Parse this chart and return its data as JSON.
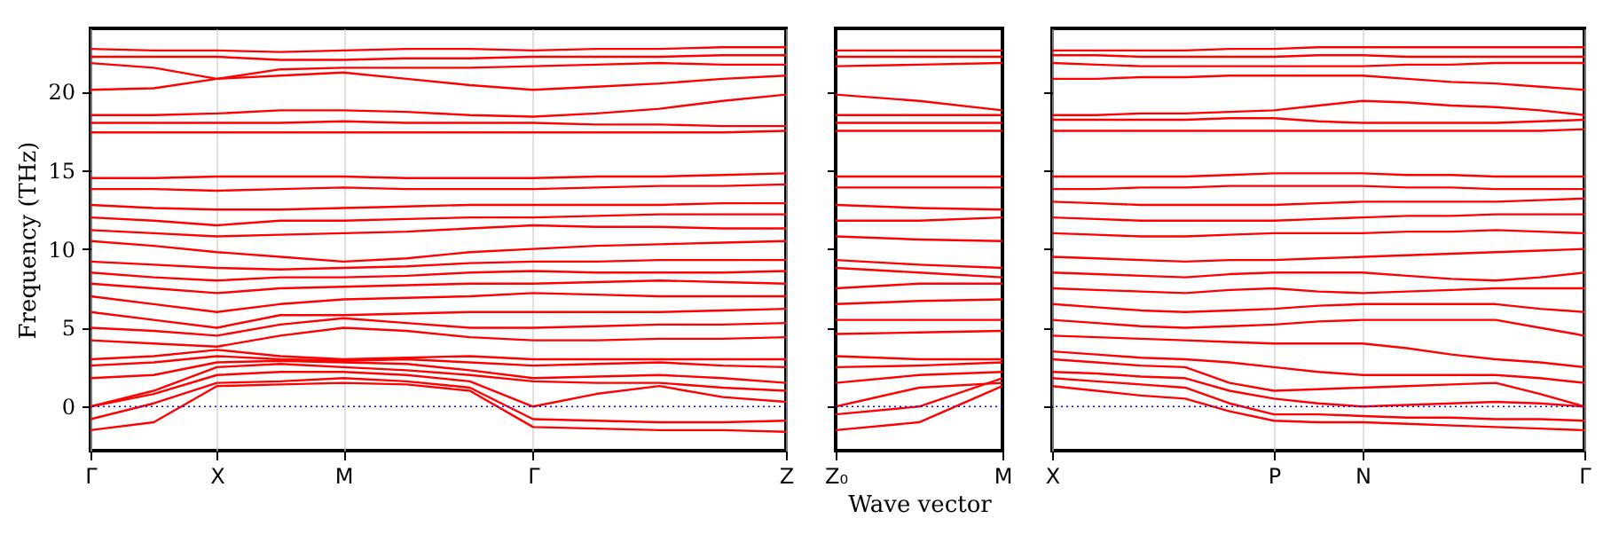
{
  "chart_data": [
    {
      "type": "line",
      "ylabel": "Frequency (THz)",
      "grid": "x",
      "ylim": [
        -2.8,
        24
      ],
      "categories": [
        "Γ",
        null,
        "X",
        null,
        "M",
        null,
        null,
        "Γ",
        null,
        null,
        null,
        "Z"
      ],
      "yticks": [
        0,
        5,
        10,
        15,
        20
      ],
      "ref_lines": [
        {
          "axis": "y",
          "value": 0,
          "color": "#0000ff",
          "line_style": "dotted"
        }
      ],
      "series": [
        {
          "color": "#ff0000",
          "values": [
            -1.5,
            -1.0,
            1.3,
            1.4,
            1.5,
            1.4,
            1.0,
            -1.3,
            -1.4,
            -1.5,
            -1.5,
            -1.6
          ]
        },
        {
          "color": "#ff0000",
          "values": [
            -0.8,
            0.2,
            1.5,
            1.6,
            1.8,
            1.6,
            1.2,
            -0.8,
            -0.9,
            -1.0,
            -1.0,
            -0.9
          ]
        },
        {
          "color": "#ff0000",
          "values": [
            0,
            0.8,
            2.0,
            2.2,
            2.2,
            2.0,
            1.6,
            0,
            0.8,
            1.3,
            0.6,
            0.3
          ]
        },
        {
          "color": "#ff0000",
          "values": [
            0,
            1.0,
            2.5,
            2.7,
            2.5,
            2.3,
            2.0,
            1.6,
            1.5,
            1.5,
            1.2,
            1.0
          ]
        },
        {
          "color": "#ff0000",
          "values": [
            1.8,
            2.0,
            2.8,
            2.9,
            2.8,
            2.7,
            2.3,
            1.8,
            1.9,
            2.0,
            1.8,
            1.5
          ]
        },
        {
          "color": "#ff0000",
          "values": [
            2.6,
            2.8,
            3.2,
            3.0,
            2.9,
            3.0,
            2.8,
            2.6,
            2.7,
            2.8,
            2.6,
            2.5
          ]
        },
        {
          "color": "#ff0000",
          "values": [
            3.0,
            3.2,
            3.6,
            3.2,
            3.0,
            3.1,
            3.2,
            3.0,
            3.0,
            3.0,
            3.0,
            3.0
          ]
        },
        {
          "color": "#ff0000",
          "values": [
            4.2,
            4.0,
            3.8,
            4.5,
            5.0,
            4.8,
            4.4,
            4.2,
            4.2,
            4.3,
            4.3,
            4.4
          ]
        },
        {
          "color": "#ff0000",
          "values": [
            5.0,
            4.8,
            4.5,
            5.2,
            5.6,
            5.3,
            5.0,
            5.0,
            5.1,
            5.2,
            5.2,
            5.3
          ]
        },
        {
          "color": "#ff0000",
          "values": [
            6.0,
            5.5,
            5.0,
            5.8,
            5.8,
            5.9,
            6.0,
            6.0,
            6.0,
            6.0,
            6.1,
            6.2
          ]
        },
        {
          "color": "#ff0000",
          "values": [
            7.0,
            6.5,
            6.0,
            6.5,
            6.8,
            6.9,
            7.0,
            7.2,
            7.1,
            7.0,
            7.0,
            7.0
          ]
        },
        {
          "color": "#ff0000",
          "values": [
            7.8,
            7.5,
            7.2,
            7.5,
            7.6,
            7.7,
            7.8,
            7.8,
            7.9,
            8.0,
            7.9,
            7.8
          ]
        },
        {
          "color": "#ff0000",
          "values": [
            8.5,
            8.2,
            8.0,
            8.2,
            8.2,
            8.3,
            8.5,
            8.6,
            8.5,
            8.5,
            8.5,
            8.6
          ]
        },
        {
          "color": "#ff0000",
          "values": [
            9.2,
            9.0,
            8.8,
            8.7,
            8.8,
            8.9,
            9.1,
            9.2,
            9.2,
            9.3,
            9.3,
            9.3
          ]
        },
        {
          "color": "#ff0000",
          "values": [
            10.5,
            10.2,
            9.8,
            9.5,
            9.2,
            9.4,
            9.8,
            10.0,
            10.2,
            10.3,
            10.4,
            10.5
          ]
        },
        {
          "color": "#ff0000",
          "values": [
            11.2,
            11.0,
            10.8,
            10.9,
            11.0,
            11.1,
            11.3,
            11.5,
            11.4,
            11.4,
            11.3,
            11.3
          ]
        },
        {
          "color": "#ff0000",
          "values": [
            12.0,
            11.8,
            11.5,
            11.8,
            11.8,
            11.9,
            12.0,
            12.0,
            12.1,
            12.2,
            12.2,
            12.2
          ]
        },
        {
          "color": "#ff0000",
          "values": [
            12.8,
            12.6,
            12.5,
            12.5,
            12.6,
            12.7,
            12.8,
            12.8,
            12.8,
            12.8,
            12.9,
            12.9
          ]
        },
        {
          "color": "#ff0000",
          "values": [
            13.8,
            13.8,
            13.7,
            13.8,
            13.9,
            13.8,
            13.8,
            13.8,
            13.9,
            14.0,
            14.0,
            14.1
          ]
        },
        {
          "color": "#ff0000",
          "values": [
            14.5,
            14.5,
            14.6,
            14.6,
            14.6,
            14.5,
            14.5,
            14.5,
            14.6,
            14.6,
            14.7,
            14.8
          ]
        },
        {
          "color": "#ff0000",
          "values": [
            17.4,
            17.4,
            17.4,
            17.4,
            17.4,
            17.4,
            17.4,
            17.4,
            17.4,
            17.4,
            17.4,
            17.5
          ]
        },
        {
          "color": "#ff0000",
          "values": [
            18.0,
            18.0,
            18.0,
            18.0,
            18.1,
            18.0,
            18.0,
            18.0,
            17.9,
            17.9,
            17.8,
            17.8
          ]
        },
        {
          "color": "#ff0000",
          "values": [
            18.5,
            18.5,
            18.6,
            18.8,
            18.8,
            18.7,
            18.5,
            18.4,
            18.6,
            18.9,
            19.4,
            19.8
          ]
        },
        {
          "color": "#ff0000",
          "values": [
            20.1,
            20.2,
            20.8,
            21.0,
            21.2,
            20.8,
            20.4,
            20.1,
            20.3,
            20.5,
            20.8,
            21.0
          ]
        },
        {
          "color": "#ff0000",
          "values": [
            21.8,
            21.5,
            20.8,
            21.4,
            21.5,
            21.5,
            21.5,
            21.6,
            21.7,
            21.8,
            21.7,
            21.7
          ]
        },
        {
          "color": "#ff0000",
          "values": [
            22.2,
            22.2,
            22.2,
            22.0,
            22.0,
            22.1,
            22.1,
            22.2,
            22.2,
            22.2,
            22.3,
            22.3
          ]
        },
        {
          "color": "#ff0000",
          "values": [
            22.7,
            22.6,
            22.6,
            22.5,
            22.6,
            22.7,
            22.7,
            22.6,
            22.7,
            22.7,
            22.8,
            22.8
          ]
        }
      ]
    },
    {
      "type": "line",
      "xlabel": "Wave vector",
      "tick_labels": "x",
      "ylim": [
        -2.8,
        24
      ],
      "categories": [
        "Z₀",
        null,
        "M"
      ],
      "yticks": [
        0,
        5,
        10,
        15,
        20
      ],
      "ref_lines": [
        {
          "axis": "y",
          "value": 0,
          "color": "#0000ff",
          "line_style": "dotted"
        }
      ],
      "series": [
        {
          "color": "#ff0000",
          "values": [
            -1.5,
            -1.0,
            1.3
          ]
        },
        {
          "color": "#ff0000",
          "values": [
            -0.5,
            0.0,
            1.8
          ]
        },
        {
          "color": "#ff0000",
          "values": [
            0,
            1.2,
            1.5
          ]
        },
        {
          "color": "#ff0000",
          "values": [
            1.5,
            2.0,
            2.2
          ]
        },
        {
          "color": "#ff0000",
          "values": [
            2.5,
            2.6,
            2.8
          ]
        },
        {
          "color": "#ff0000",
          "values": [
            3.2,
            3.0,
            3.0
          ]
        },
        {
          "color": "#ff0000",
          "values": [
            4.6,
            4.7,
            4.8
          ]
        },
        {
          "color": "#ff0000",
          "values": [
            5.5,
            5.5,
            5.5
          ]
        },
        {
          "color": "#ff0000",
          "values": [
            6.5,
            6.7,
            6.8
          ]
        },
        {
          "color": "#ff0000",
          "values": [
            7.5,
            7.8,
            7.8
          ]
        },
        {
          "color": "#ff0000",
          "values": [
            8.8,
            8.5,
            8.2
          ]
        },
        {
          "color": "#ff0000",
          "values": [
            9.3,
            9.0,
            8.8
          ]
        },
        {
          "color": "#ff0000",
          "values": [
            10.8,
            10.6,
            10.5
          ]
        },
        {
          "color": "#ff0000",
          "values": [
            11.8,
            11.8,
            12.0
          ]
        },
        {
          "color": "#ff0000",
          "values": [
            12.8,
            12.6,
            12.5
          ]
        },
        {
          "color": "#ff0000",
          "values": [
            13.9,
            13.9,
            13.9
          ]
        },
        {
          "color": "#ff0000",
          "values": [
            14.6,
            14.6,
            14.6
          ]
        },
        {
          "color": "#ff0000",
          "values": [
            17.5,
            17.5,
            17.5
          ]
        },
        {
          "color": "#ff0000",
          "values": [
            18.0,
            18.0,
            18.0
          ]
        },
        {
          "color": "#ff0000",
          "values": [
            18.5,
            18.5,
            18.5
          ]
        },
        {
          "color": "#ff0000",
          "values": [
            19.8,
            19.4,
            18.8
          ]
        },
        {
          "color": "#ff0000",
          "values": [
            21.6,
            21.7,
            21.8
          ]
        },
        {
          "color": "#ff0000",
          "values": [
            22.2,
            22.2,
            22.2
          ]
        },
        {
          "color": "#ff0000",
          "values": [
            22.6,
            22.6,
            22.6
          ]
        }
      ]
    },
    {
      "type": "line",
      "grid": "x",
      "tick_labels": "x",
      "ylim": [
        -2.8,
        24
      ],
      "categories": [
        "X",
        null,
        null,
        null,
        null,
        "P",
        null,
        "N",
        null,
        null,
        null,
        null,
        "Γ"
      ],
      "yticks": [
        0,
        5,
        10,
        15,
        20
      ],
      "ref_lines": [
        {
          "axis": "y",
          "value": 0,
          "color": "#0000ff",
          "line_style": "dotted"
        }
      ],
      "series": [
        {
          "color": "#ff0000",
          "values": [
            1.3,
            1.0,
            0.7,
            0.5,
            -0.3,
            -0.9,
            -1.0,
            -1.0,
            -1.1,
            -1.2,
            -1.3,
            -1.4,
            -1.5
          ]
        },
        {
          "color": "#ff0000",
          "values": [
            1.8,
            1.6,
            1.4,
            1.2,
            0.2,
            -0.5,
            -0.5,
            -0.6,
            -0.7,
            -0.7,
            -0.8,
            -0.8,
            -0.9
          ]
        },
        {
          "color": "#ff0000",
          "values": [
            2.2,
            2.1,
            1.9,
            1.8,
            1.0,
            0.5,
            0.2,
            0.0,
            0.1,
            0.2,
            0.3,
            0.2,
            0
          ]
        },
        {
          "color": "#ff0000",
          "values": [
            3.0,
            2.8,
            2.6,
            2.5,
            1.5,
            1.0,
            1.1,
            1.2,
            1.3,
            1.4,
            1.5,
            0.8,
            0
          ]
        },
        {
          "color": "#ff0000",
          "values": [
            3.5,
            3.3,
            3.1,
            3.0,
            2.8,
            2.5,
            2.2,
            2.0,
            2.0,
            2.0,
            2.0,
            1.8,
            1.5
          ]
        },
        {
          "color": "#ff0000",
          "values": [
            4.5,
            4.4,
            4.3,
            4.2,
            4.1,
            4.0,
            4.0,
            4.0,
            3.7,
            3.3,
            3.0,
            2.8,
            2.5
          ]
        },
        {
          "color": "#ff0000",
          "values": [
            5.5,
            5.3,
            5.1,
            5.0,
            5.1,
            5.2,
            5.4,
            5.5,
            5.5,
            5.5,
            5.5,
            5.0,
            4.5
          ]
        },
        {
          "color": "#ff0000",
          "values": [
            6.5,
            6.3,
            6.1,
            6.0,
            6.1,
            6.2,
            6.4,
            6.5,
            6.5,
            6.5,
            6.5,
            6.2,
            6.0
          ]
        },
        {
          "color": "#ff0000",
          "values": [
            7.5,
            7.4,
            7.3,
            7.2,
            7.4,
            7.5,
            7.3,
            7.2,
            7.3,
            7.4,
            7.5,
            7.5,
            7.5
          ]
        },
        {
          "color": "#ff0000",
          "values": [
            8.5,
            8.4,
            8.3,
            8.2,
            8.4,
            8.5,
            8.5,
            8.5,
            8.3,
            8.1,
            8.0,
            8.2,
            8.5
          ]
        },
        {
          "color": "#ff0000",
          "values": [
            9.5,
            9.4,
            9.3,
            9.2,
            9.3,
            9.3,
            9.4,
            9.5,
            9.6,
            9.7,
            9.8,
            9.9,
            10.0
          ]
        },
        {
          "color": "#ff0000",
          "values": [
            11.0,
            10.9,
            10.8,
            10.8,
            10.9,
            11.0,
            11.0,
            11.0,
            11.1,
            11.1,
            11.2,
            11.1,
            11.0
          ]
        },
        {
          "color": "#ff0000",
          "values": [
            12.0,
            11.9,
            11.8,
            11.8,
            11.8,
            11.8,
            11.9,
            12.0,
            12.1,
            12.1,
            12.2,
            12.2,
            12.2
          ]
        },
        {
          "color": "#ff0000",
          "values": [
            13.0,
            12.9,
            12.8,
            12.8,
            12.8,
            12.8,
            12.9,
            13.0,
            13.0,
            13.0,
            13.0,
            13.1,
            13.2
          ]
        },
        {
          "color": "#ff0000",
          "values": [
            13.8,
            13.8,
            13.9,
            13.9,
            14.0,
            14.0,
            14.0,
            14.0,
            13.9,
            13.9,
            13.8,
            13.8,
            13.8
          ]
        },
        {
          "color": "#ff0000",
          "values": [
            14.6,
            14.6,
            14.6,
            14.6,
            14.7,
            14.8,
            14.8,
            14.8,
            14.7,
            14.7,
            14.6,
            14.6,
            14.6
          ]
        },
        {
          "color": "#ff0000",
          "values": [
            17.5,
            17.5,
            17.5,
            17.5,
            17.5,
            17.5,
            17.5,
            17.5,
            17.5,
            17.5,
            17.5,
            17.5,
            17.6
          ]
        },
        {
          "color": "#ff0000",
          "values": [
            18.2,
            18.2,
            18.2,
            18.2,
            18.3,
            18.3,
            18.1,
            18.0,
            18.0,
            18.0,
            18.0,
            18.1,
            18.2
          ]
        },
        {
          "color": "#ff0000",
          "values": [
            18.5,
            18.5,
            18.6,
            18.6,
            18.7,
            18.8,
            19.1,
            19.4,
            19.3,
            19.1,
            19.0,
            18.8,
            18.5
          ]
        },
        {
          "color": "#ff0000",
          "values": [
            20.8,
            20.8,
            20.9,
            20.9,
            21.0,
            21.0,
            21.0,
            21.0,
            20.8,
            20.6,
            20.5,
            20.3,
            20.1
          ]
        },
        {
          "color": "#ff0000",
          "values": [
            21.8,
            21.7,
            21.6,
            21.6,
            21.6,
            21.6,
            21.6,
            21.6,
            21.7,
            21.7,
            21.8,
            21.8,
            21.8
          ]
        },
        {
          "color": "#ff0000",
          "values": [
            22.3,
            22.3,
            22.2,
            22.2,
            22.2,
            22.2,
            22.3,
            22.3,
            22.2,
            22.2,
            22.2,
            22.2,
            22.2
          ]
        },
        {
          "color": "#ff0000",
          "values": [
            22.6,
            22.6,
            22.6,
            22.6,
            22.7,
            22.7,
            22.8,
            22.8,
            22.8,
            22.8,
            22.8,
            22.8,
            22.8
          ]
        }
      ]
    }
  ]
}
